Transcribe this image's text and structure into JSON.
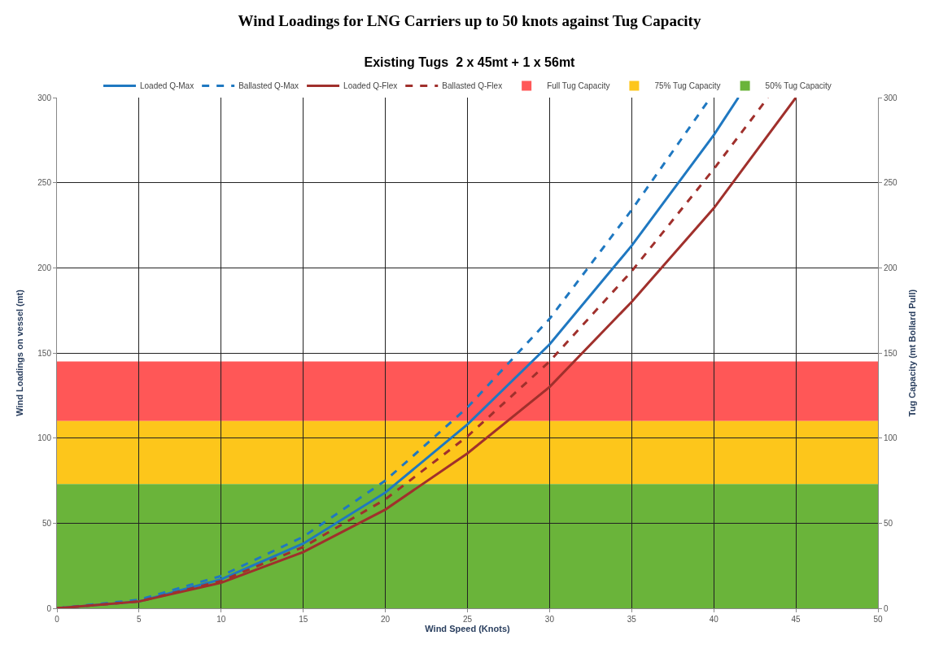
{
  "chart_data": {
    "type": "line",
    "title": "Wind Loadings for LNG Carriers up to 50 knots against Tug Capacity",
    "subtitle": "Existing Tugs  2 x 45mt + 1 x 56mt",
    "xlabel": "Wind Speed (Knots)",
    "ylabel": "Wind Loadings on vessel (mt)",
    "y2label": "Tug Capacity (mt Bollard Pull)",
    "xlim": [
      0,
      50
    ],
    "xticks": [
      0,
      5,
      10,
      15,
      20,
      25,
      30,
      35,
      40,
      45,
      50
    ],
    "ylim": [
      0,
      300
    ],
    "yticks": [
      0,
      50,
      100,
      150,
      200,
      250,
      300
    ],
    "y2lim": [
      0,
      300
    ],
    "y2ticks": [
      0,
      50,
      100,
      150,
      200,
      250,
      300
    ],
    "grid": true,
    "legend": "top",
    "marker": "none",
    "bands": [
      {
        "axis": "y",
        "from": 110,
        "to": 145,
        "label": "Full Tug Capacity",
        "color": "#ff5757"
      },
      {
        "axis": "y",
        "from": 73,
        "to": 110,
        "label": "75% Tug Capacity",
        "color": "#fdc61b"
      },
      {
        "axis": "y",
        "from": 0,
        "to": 73,
        "label": "50% Tug Capacity",
        "color": "#6ab43a"
      }
    ],
    "series": [
      {
        "name": "Loaded Q-Max",
        "color": "#1f78c1",
        "line_style": "solid",
        "x": [
          0,
          5,
          10,
          15,
          20,
          25,
          30,
          35,
          40,
          41.5
        ],
        "values": [
          0,
          4,
          17,
          38,
          68,
          108,
          155,
          213,
          278,
          300
        ]
      },
      {
        "name": "Ballasted Q-Max",
        "color": "#1f78c1",
        "line_style": "dashed",
        "x": [
          0,
          5,
          10,
          15,
          20,
          25,
          30,
          35,
          39.8
        ],
        "values": [
          0,
          5,
          19,
          42,
          75,
          118,
          170,
          234,
          300
        ]
      },
      {
        "name": "Loaded Q-Flex",
        "color": "#a0302c",
        "line_style": "solid",
        "x": [
          0,
          5,
          10,
          15,
          20,
          25,
          30,
          35,
          40,
          45
        ],
        "values": [
          0,
          4,
          15,
          33,
          58,
          91,
          130,
          180,
          235,
          300
        ]
      },
      {
        "name": "Ballasted Q-Flex",
        "color": "#a0302c",
        "line_style": "dashed",
        "x": [
          0,
          5,
          10,
          15,
          20,
          25,
          30,
          35,
          40,
          43.3
        ],
        "values": [
          0,
          4,
          16,
          36,
          64,
          101,
          145,
          198,
          258,
          300
        ]
      }
    ]
  }
}
